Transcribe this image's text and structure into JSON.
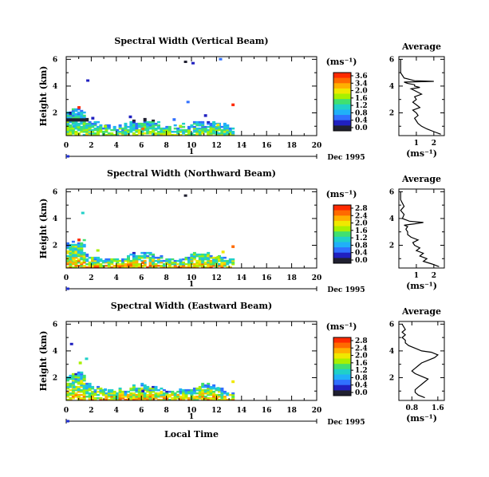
{
  "chart_data": [
    {
      "type": "heatmap",
      "title": "Spectral Width (Vertical Beam)",
      "ylabel": "Height (km)",
      "xlabel": "",
      "x_ticks": [
        0,
        2,
        4,
        6,
        8,
        10,
        12,
        14,
        16,
        18,
        20
      ],
      "y_ticks": [
        2,
        4,
        6
      ],
      "xlim": [
        0,
        20
      ],
      "ylim": [
        0.3,
        6.2
      ],
      "data_extent_hours": [
        0,
        13.4
      ],
      "date_label": "Dec 1995",
      "day_label": "1",
      "colorbar": {
        "unit": "(ms⁻¹)",
        "ticks": [
          "3.6",
          "3.4",
          "2.0",
          "1.6",
          "1.2",
          "0.8",
          "0.4",
          "0.0"
        ],
        "colors": [
          "#ff2a00",
          "#ff6a00",
          "#ffb000",
          "#f0e800",
          "#a8f000",
          "#40e070",
          "#20d0c8",
          "#20b0f8",
          "#3070ff",
          "#2020c0",
          "#202030"
        ]
      },
      "cells": [
        {
          "h": 0.5,
          "km": 0.9,
          "v": 1.2
        },
        {
          "h": 1.5,
          "km": 0.8,
          "v": 1.6
        },
        {
          "h": 3.0,
          "km": 0.9,
          "v": 2.0
        },
        {
          "h": 6.0,
          "km": 0.7,
          "v": 3.4
        },
        {
          "h": 9.0,
          "km": 0.9,
          "v": 2.0
        },
        {
          "h": 12.0,
          "km": 1.0,
          "v": 2.4
        },
        {
          "h": 0.9,
          "km": 2.3,
          "v": 3.6
        },
        {
          "h": 2.0,
          "km": 1.5,
          "v": 0.4
        },
        {
          "h": 5.0,
          "km": 1.6,
          "v": 0.4
        },
        {
          "h": 8.5,
          "km": 1.4,
          "v": 0.8
        },
        {
          "h": 11.0,
          "km": 1.7,
          "v": 0.4
        },
        {
          "h": 13.2,
          "km": 2.5,
          "v": 3.6
        }
      ],
      "sparse_cells": [
        {
          "h": 9.4,
          "km": 5.8,
          "v": 0.0
        },
        {
          "h": 10.0,
          "km": 5.7,
          "v": 0.4
        },
        {
          "h": 12.2,
          "km": 6.0,
          "v": 0.8
        },
        {
          "h": 1.6,
          "km": 4.4,
          "v": 0.4
        },
        {
          "h": 9.6,
          "km": 2.8,
          "v": 0.8
        }
      ],
      "average_profile": {
        "title": "Average",
        "xlabel": "(ms⁻¹)",
        "x_ticks": [
          "1",
          "2"
        ],
        "xlim": [
          0,
          2.6
        ],
        "ylim": [
          0.3,
          6.2
        ],
        "y_ticks": [
          2,
          4,
          6
        ],
        "x": [
          2.4,
          2.0,
          1.6,
          1.3,
          1.1,
          1.0,
          0.9,
          1.1,
          1.0,
          0.8,
          1.2,
          1.0,
          0.8,
          1.0,
          0.9,
          1.3,
          1.0,
          0.7,
          1.2,
          0.9,
          0.9,
          0.5,
          0.3,
          2.0,
          0.9,
          0.3,
          0.2,
          0.1,
          0.1,
          0.1,
          0.1
        ],
        "y": [
          0.4,
          0.6,
          0.8,
          1.0,
          1.2,
          1.4,
          1.6,
          1.8,
          2.0,
          2.2,
          2.4,
          2.6,
          2.8,
          3.0,
          3.2,
          3.4,
          3.6,
          3.8,
          3.9,
          4.0,
          4.1,
          4.2,
          4.3,
          4.35,
          4.4,
          4.6,
          4.8,
          5.0,
          5.4,
          5.8,
          6.0
        ]
      }
    },
    {
      "type": "heatmap",
      "title": "Spectral Width (Northward Beam)",
      "ylabel": "Height (km)",
      "xlabel": "",
      "x_ticks": [
        0,
        2,
        4,
        6,
        8,
        10,
        12,
        14,
        16,
        18,
        20
      ],
      "y_ticks": [
        2,
        4,
        6
      ],
      "xlim": [
        0,
        20
      ],
      "ylim": [
        0.3,
        6.2
      ],
      "data_extent_hours": [
        0,
        13.4
      ],
      "date_label": "Dec 1995",
      "day_label": "1",
      "colorbar": {
        "unit": "(ms⁻¹)",
        "ticks": [
          "2.8",
          "2.4",
          "2.0",
          "1.6",
          "1.2",
          "0.8",
          "0.4",
          "0.0"
        ],
        "colors": [
          "#ff2a00",
          "#ff6a00",
          "#ffb000",
          "#f0e800",
          "#a8f000",
          "#40e070",
          "#20d0c8",
          "#20b0f8",
          "#3070ff",
          "#2020c0",
          "#202030"
        ]
      },
      "cells": [
        {
          "h": 0.5,
          "km": 0.8,
          "v": 2.0
        },
        {
          "h": 3.0,
          "km": 0.7,
          "v": 0.8
        },
        {
          "h": 6.0,
          "km": 0.6,
          "v": 2.4
        },
        {
          "h": 9.0,
          "km": 0.8,
          "v": 0.8
        },
        {
          "h": 12.0,
          "km": 1.0,
          "v": 1.6
        },
        {
          "h": 0.9,
          "km": 2.3,
          "v": 2.8
        },
        {
          "h": 12.4,
          "km": 1.4,
          "v": 2.0
        },
        {
          "h": 13.2,
          "km": 1.8,
          "v": 2.4
        }
      ],
      "sparse_cells": [
        {
          "h": 1.2,
          "km": 4.4,
          "v": 1.2
        },
        {
          "h": 9.4,
          "km": 5.7,
          "v": 0.0
        },
        {
          "h": 2.4,
          "km": 1.6,
          "v": 1.6
        }
      ],
      "average_profile": {
        "title": "Average",
        "xlabel": "(ms⁻¹)",
        "x_ticks": [
          "1",
          "2"
        ],
        "xlim": [
          0,
          2.6
        ],
        "ylim": [
          0.3,
          6.2
        ],
        "y_ticks": [
          2,
          4,
          6
        ],
        "x": [
          2.3,
          1.9,
          1.4,
          1.6,
          1.2,
          1.4,
          1.0,
          1.2,
          0.9,
          0.8,
          1.1,
          0.7,
          0.5,
          0.5,
          0.4,
          0.5,
          0.3,
          0.9,
          1.4,
          0.6,
          0.2,
          0.3,
          0.1,
          0.3,
          0.1,
          0.1
        ],
        "y": [
          0.4,
          0.6,
          0.8,
          1.0,
          1.2,
          1.4,
          1.6,
          1.8,
          2.0,
          2.2,
          2.4,
          2.6,
          2.8,
          3.0,
          3.2,
          3.4,
          3.5,
          3.6,
          3.7,
          3.8,
          4.0,
          4.3,
          4.6,
          4.9,
          5.4,
          6.0
        ]
      }
    },
    {
      "type": "heatmap",
      "title": "Spectral Width (Eastward Beam)",
      "ylabel": "Height (km)",
      "xlabel": "Local Time",
      "x_ticks": [
        0,
        2,
        4,
        6,
        8,
        10,
        12,
        14,
        16,
        18,
        20
      ],
      "y_ticks": [
        2,
        4,
        6
      ],
      "xlim": [
        0,
        20
      ],
      "ylim": [
        0.3,
        6.2
      ],
      "data_extent_hours": [
        0,
        13.4
      ],
      "date_label": "Dec 1995",
      "day_label": "1",
      "colorbar": {
        "unit": "(ms⁻¹)",
        "ticks": [
          "2.8",
          "2.4",
          "2.0",
          "1.6",
          "1.2",
          "0.8",
          "0.4",
          "0.0"
        ],
        "colors": [
          "#ff2a00",
          "#ff6a00",
          "#ffb000",
          "#f0e800",
          "#a8f000",
          "#40e070",
          "#20d0c8",
          "#20b0f8",
          "#3070ff",
          "#2020c0",
          "#202030"
        ]
      },
      "cells": [
        {
          "h": 0.5,
          "km": 1.2,
          "v": 1.2
        },
        {
          "h": 1.0,
          "km": 3.0,
          "v": 1.6
        },
        {
          "h": 3.0,
          "km": 1.0,
          "v": 0.8
        },
        {
          "h": 6.0,
          "km": 0.9,
          "v": 0.4
        },
        {
          "h": 9.0,
          "km": 1.0,
          "v": 0.8
        },
        {
          "h": 12.0,
          "km": 1.1,
          "v": 1.2
        },
        {
          "h": 13.2,
          "km": 1.6,
          "v": 2.0
        }
      ],
      "sparse_cells": [
        {
          "h": 0.3,
          "km": 4.5,
          "v": 0.4
        },
        {
          "h": 1.5,
          "km": 3.4,
          "v": 1.2
        }
      ],
      "average_profile": {
        "title": "Average",
        "xlabel": "(ms⁻¹)",
        "x_ticks": [
          "0.8",
          "1.6"
        ],
        "xlim": [
          0.4,
          1.8
        ],
        "ylim": [
          0.3,
          6.2
        ],
        "y_ticks": [
          2,
          4,
          6
        ],
        "x": [
          1.2,
          1.0,
          0.9,
          0.9,
          1.0,
          1.1,
          1.2,
          1.3,
          1.1,
          0.9,
          0.8,
          0.9,
          1.0,
          1.1,
          1.3,
          1.5,
          1.6,
          1.4,
          1.1,
          0.9,
          0.7,
          0.6,
          0.6,
          0.5,
          0.6,
          0.5,
          0.6,
          0.5
        ],
        "y": [
          0.5,
          0.7,
          0.9,
          1.1,
          1.3,
          1.5,
          1.7,
          1.9,
          2.1,
          2.3,
          2.5,
          2.7,
          2.9,
          3.1,
          3.3,
          3.5,
          3.7,
          3.9,
          4.0,
          4.2,
          4.4,
          4.6,
          4.8,
          5.0,
          5.2,
          5.4,
          5.6,
          6.0
        ]
      }
    }
  ]
}
